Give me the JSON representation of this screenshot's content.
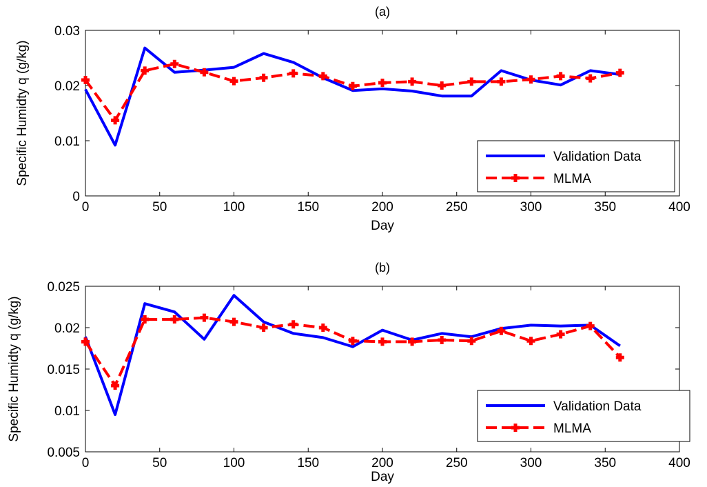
{
  "chart_data": [
    {
      "type": "line",
      "title": "(a)",
      "xlabel": "Day",
      "ylabel": "Specific Humidty q (g/kg)",
      "xlim": [
        0,
        400
      ],
      "ylim": [
        0,
        0.03
      ],
      "xticks": [
        "0",
        "50",
        "100",
        "150",
        "200",
        "250",
        "300",
        "350",
        "400"
      ],
      "yticks": [
        "0",
        "0.01",
        "0.02",
        "0.03"
      ],
      "legend_position": "bottom-right",
      "x": [
        0,
        20,
        40,
        60,
        80,
        100,
        120,
        140,
        160,
        180,
        200,
        220,
        240,
        260,
        280,
        300,
        320,
        340,
        360
      ],
      "series": [
        {
          "name": "Validation Data",
          "color": "#0000ff",
          "style": "solid",
          "values": [
            0.0193,
            0.0092,
            0.0268,
            0.0224,
            0.0228,
            0.0233,
            0.0258,
            0.0242,
            0.0214,
            0.0191,
            0.0194,
            0.019,
            0.0181,
            0.0181,
            0.0227,
            0.021,
            0.0201,
            0.0227,
            0.022
          ]
        },
        {
          "name": "MLMA",
          "color": "#ff0000",
          "style": "dashed",
          "marker": "plus",
          "values": [
            0.021,
            0.0137,
            0.0227,
            0.0239,
            0.0224,
            0.0208,
            0.0214,
            0.0222,
            0.0217,
            0.0199,
            0.0205,
            0.0207,
            0.02,
            0.0207,
            0.0207,
            0.0211,
            0.0217,
            0.0213,
            0.0223
          ]
        }
      ]
    },
    {
      "type": "line",
      "title": "(b)",
      "xlabel": "Day",
      "ylabel": "Specific Humidty q (g/kg)",
      "xlim": [
        0,
        400
      ],
      "ylim": [
        0.005,
        0.025
      ],
      "xticks": [
        "0",
        "50",
        "100",
        "150",
        "200",
        "250",
        "300",
        "350",
        "400"
      ],
      "yticks": [
        "0.005",
        "0.01",
        "0.015",
        "0.02",
        "0.025"
      ],
      "legend_position": "bottom-right",
      "x": [
        0,
        20,
        40,
        60,
        80,
        100,
        120,
        140,
        160,
        180,
        200,
        220,
        240,
        260,
        280,
        300,
        320,
        340,
        360
      ],
      "series": [
        {
          "name": "Validation Data",
          "color": "#0000ff",
          "style": "solid",
          "values": [
            0.0189,
            0.0095,
            0.0229,
            0.0219,
            0.0186,
            0.0239,
            0.0207,
            0.0193,
            0.0188,
            0.0177,
            0.0197,
            0.0185,
            0.0193,
            0.0189,
            0.0199,
            0.0203,
            0.0202,
            0.0203,
            0.0178
          ]
        },
        {
          "name": "MLMA",
          "color": "#ff0000",
          "style": "dashed",
          "marker": "plus",
          "values": [
            0.0183,
            0.013,
            0.021,
            0.021,
            0.0212,
            0.0207,
            0.02,
            0.0204,
            0.02,
            0.0184,
            0.0183,
            0.0183,
            0.0185,
            0.0184,
            0.0196,
            0.0184,
            0.0192,
            0.0202,
            0.0164
          ]
        }
      ]
    }
  ]
}
